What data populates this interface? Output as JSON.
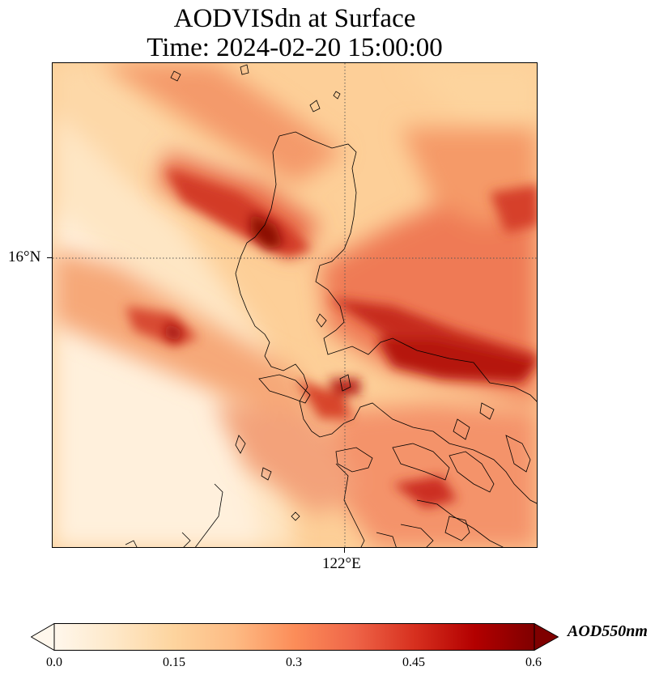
{
  "title": {
    "line1": "AODVISdn at Surface",
    "line2": "Time: 2024-02-20 15:00:00"
  },
  "map": {
    "lat_tick_label": "16°N",
    "lon_tick_label": "122°E",
    "gridlines": "dotted",
    "coastline_color": "#000000"
  },
  "colorbar": {
    "label": "AOD550nm",
    "ticks": [
      "0.0",
      "0.15",
      "0.3",
      "0.45",
      "0.6"
    ],
    "min": 0.0,
    "max": 0.6,
    "extend": "both",
    "colormap": "OrRd",
    "colors": [
      "#fff7ec",
      "#fee8c8",
      "#fdd49e",
      "#fdbb84",
      "#fc8d59",
      "#ef6548",
      "#d7301f",
      "#b30000",
      "#7f0000"
    ]
  }
}
